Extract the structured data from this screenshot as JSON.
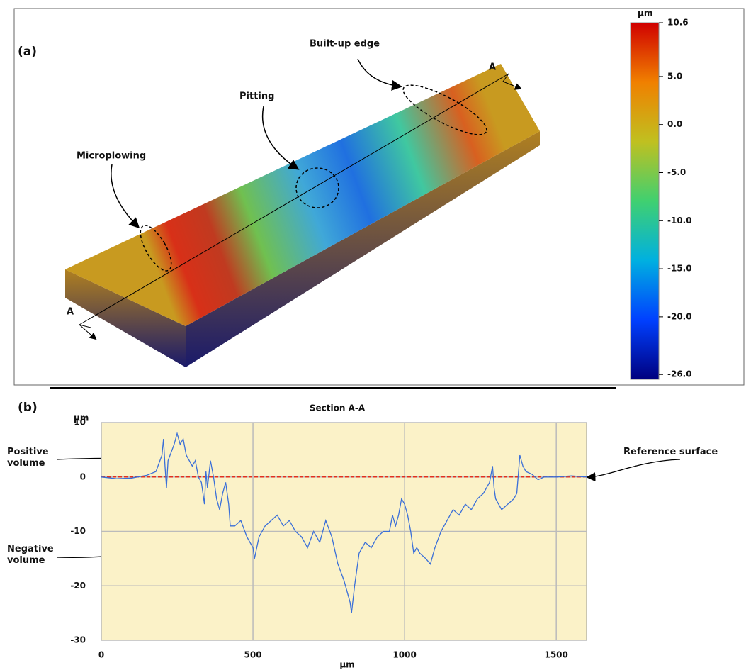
{
  "chart_data": [
    {
      "type": "surface",
      "panel_label": "(a)",
      "annotations": [
        "Microplowing",
        "Pitting",
        "Built-up edge"
      ],
      "section_labels": [
        "A",
        "A"
      ],
      "colorbar_label": "µm",
      "clim": [
        -26.5,
        10.6
      ],
      "cticks": [
        10.6,
        {
          "value": 5,
          "label": "5.0"
        },
        {
          "value": 0,
          "label": "0.0"
        },
        {
          "value": -5,
          "label": "-5.0"
        },
        {
          "value": -10,
          "label": "-10.0"
        },
        {
          "value": -15,
          "label": "-15.0"
        },
        {
          "value": -20,
          "label": "-20.0"
        },
        {
          "value": -26,
          "label": "-26.0"
        }
      ],
      "colormap": [
        "#00007f",
        "#0040ff",
        "#00b0e0",
        "#40d070",
        "#c0c020",
        "#f08000",
        "#d00000"
      ]
    },
    {
      "type": "line",
      "panel_label": "(b)",
      "title": "Section A-A",
      "xlabel": "µm",
      "ylabel": "µm",
      "annotations": [
        "Positive volume",
        "Negative volume",
        "Reference surface"
      ],
      "xlim": [
        0,
        1600
      ],
      "xticks": [
        0,
        500,
        1000,
        1500
      ],
      "ylim": [
        -30,
        10
      ],
      "yticks": [
        -30,
        -20,
        -10,
        0,
        10
      ],
      "grid": true,
      "background": "#fbf2c8",
      "reference_line": {
        "value": 0,
        "color": "#e03020"
      },
      "color": "#3a6fd8",
      "x": [
        0,
        50,
        100,
        150,
        180,
        200,
        205,
        210,
        215,
        220,
        240,
        250,
        260,
        270,
        280,
        290,
        300,
        310,
        320,
        330,
        340,
        345,
        350,
        360,
        370,
        380,
        390,
        400,
        410,
        420,
        425,
        440,
        460,
        480,
        500,
        505,
        520,
        540,
        560,
        580,
        600,
        620,
        640,
        660,
        680,
        700,
        720,
        740,
        760,
        780,
        800,
        820,
        825,
        835,
        850,
        870,
        890,
        910,
        930,
        950,
        960,
        970,
        980,
        990,
        1000,
        1010,
        1020,
        1030,
        1040,
        1050,
        1070,
        1085,
        1100,
        1120,
        1140,
        1160,
        1180,
        1200,
        1220,
        1240,
        1260,
        1280,
        1290,
        1295,
        1300,
        1320,
        1340,
        1360,
        1370,
        1380,
        1390,
        1400,
        1420,
        1440,
        1460,
        1500,
        1550,
        1600
      ],
      "values": [
        0,
        -0.3,
        -0.2,
        0.3,
        1,
        4,
        7,
        2,
        -2,
        3,
        6,
        8,
        6,
        7,
        4,
        3,
        2,
        3,
        0,
        -1,
        -5,
        1,
        -2,
        3,
        0,
        -4,
        -6,
        -3,
        -1,
        -5,
        -9,
        -9,
        -8,
        -11,
        -13,
        -15,
        -11,
        -9,
        -8,
        -7,
        -9,
        -8,
        -10,
        -11,
        -13,
        -10,
        -12,
        -8,
        -11,
        -16,
        -19,
        -23,
        -25,
        -20,
        -14,
        -12,
        -13,
        -11,
        -10,
        -10,
        -7,
        -9,
        -7,
        -4,
        -5,
        -7,
        -10,
        -14,
        -13,
        -14,
        -15,
        -16,
        -13,
        -10,
        -8,
        -6,
        -7,
        -5,
        -6,
        -4,
        -3,
        -1,
        2,
        -2,
        -4,
        -6,
        -5,
        -4,
        -3,
        4,
        2,
        1,
        0.5,
        -0.5,
        0,
        0,
        0.2,
        0
      ]
    }
  ]
}
